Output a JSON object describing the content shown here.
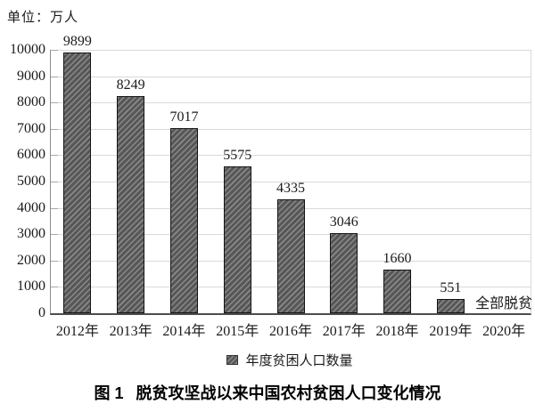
{
  "unit_label": "单位：万人",
  "caption": {
    "figure_number": "图 1",
    "title": "脱贫攻坚战以来中国农村贫困人口变化情况"
  },
  "chart_data": {
    "type": "bar",
    "title": "图 1 脱贫攻坚战以来中国农村贫困人口变化情况",
    "unit": "万人",
    "categories": [
      "2012年",
      "2013年",
      "2014年",
      "2015年",
      "2016年",
      "2017年",
      "2018年",
      "2019年",
      "2020年"
    ],
    "values": [
      9899,
      8249,
      7017,
      5575,
      4335,
      3046,
      1660,
      551,
      0
    ],
    "bar_labels": [
      "9899",
      "8249",
      "7017",
      "5575",
      "4335",
      "3046",
      "1660",
      "551",
      ""
    ],
    "annotations": [
      "",
      "",
      "",
      "",
      "",
      "",
      "",
      "",
      "全部脱贫"
    ],
    "yticks": [
      0,
      1000,
      2000,
      3000,
      4000,
      5000,
      6000,
      7000,
      8000,
      9000,
      10000
    ],
    "ylim": [
      0,
      10000
    ],
    "xlabel": "",
    "ylabel": "",
    "grid": true,
    "legend_label": "年度贫困人口数量",
    "legend_position": "bottom",
    "bar_color": "#6e6e6e",
    "hatch": "diagonal",
    "gridline_color": "#d9d9d9",
    "axis_color": "#4d4d4d"
  }
}
